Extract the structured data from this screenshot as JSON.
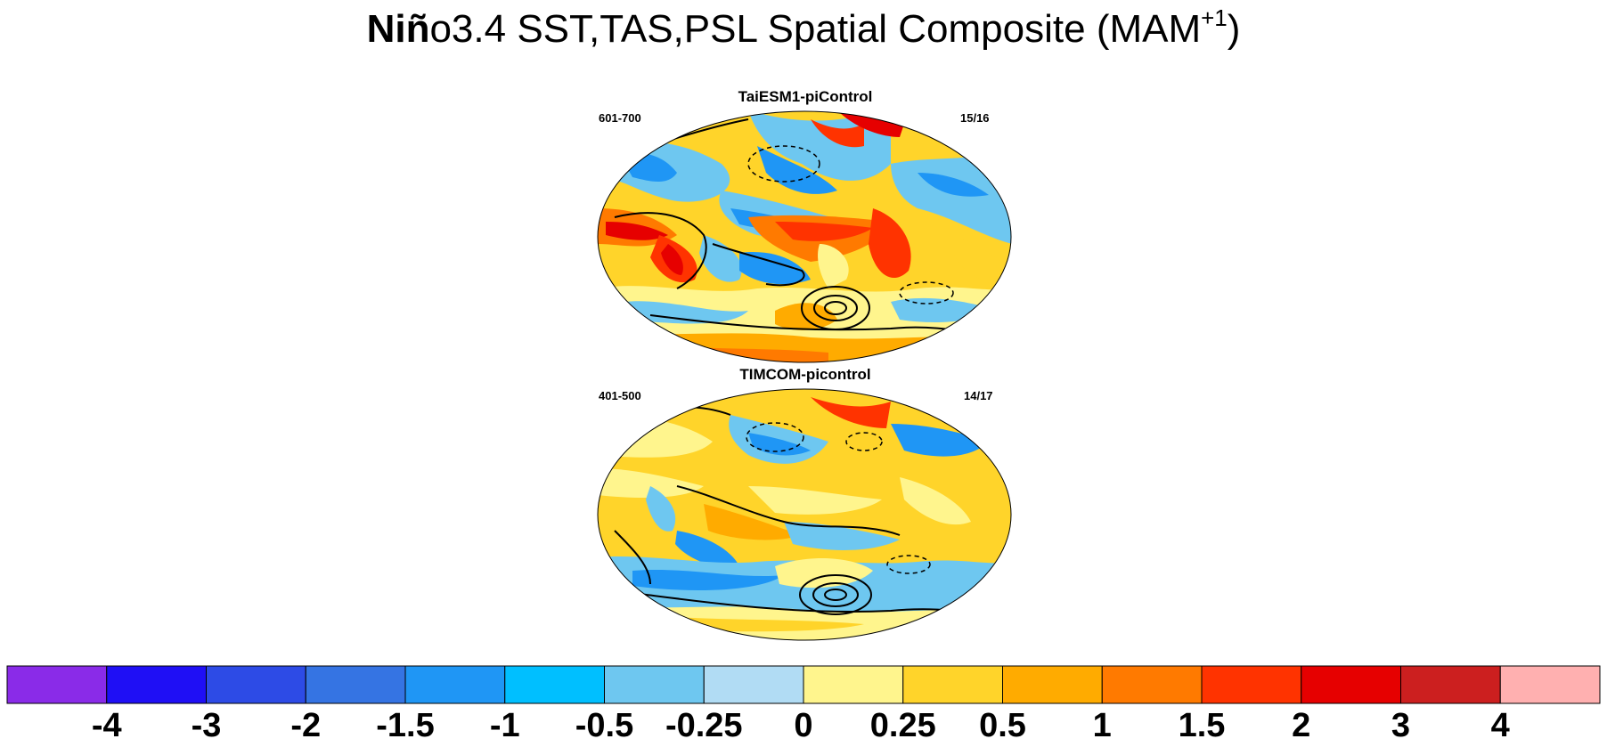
{
  "title": {
    "bold": "Niñ",
    "rest": "o3.4 SST,TAS,PSL Spatial Composite (MAM",
    "sup": "+1",
    "close": ")"
  },
  "panels": [
    {
      "title": "TaiESM1-piControl",
      "left_label": "601-700",
      "right_label": "15/16"
    },
    {
      "title": "TIMCOM-picontrol",
      "left_label": "401-500",
      "right_label": "14/17"
    }
  ],
  "colorbar": {
    "colors": [
      "#8a2be8",
      "#1f0ff5",
      "#2d4be6",
      "#3574e3",
      "#1f96f5",
      "#00bfff",
      "#6ec7f0",
      "#b1dcf4",
      "#fff58d",
      "#ffd42a",
      "#ffab00",
      "#ff7a00",
      "#ff3300",
      "#e60000",
      "#cc1f1f",
      "#ffb0b0"
    ],
    "ticks": [
      "-4",
      "-3",
      "-2",
      "-1.5",
      "-1",
      "-0.5",
      "-0.25",
      "0",
      "0.25",
      "0.5",
      "1",
      "1.5",
      "2",
      "3",
      "4"
    ]
  },
  "chart_data": {
    "type": "heatmap",
    "title": "Niño3.4 SST,TAS,PSL Spatial Composite (MAM+1)",
    "projection": "global map with PSL contour overlay",
    "levels": [
      -4,
      -3,
      -2,
      -1.5,
      -1,
      -0.5,
      -0.25,
      0,
      0.25,
      0.5,
      1,
      1.5,
      2,
      3,
      4
    ],
    "legend_placement": "bottom"
  }
}
